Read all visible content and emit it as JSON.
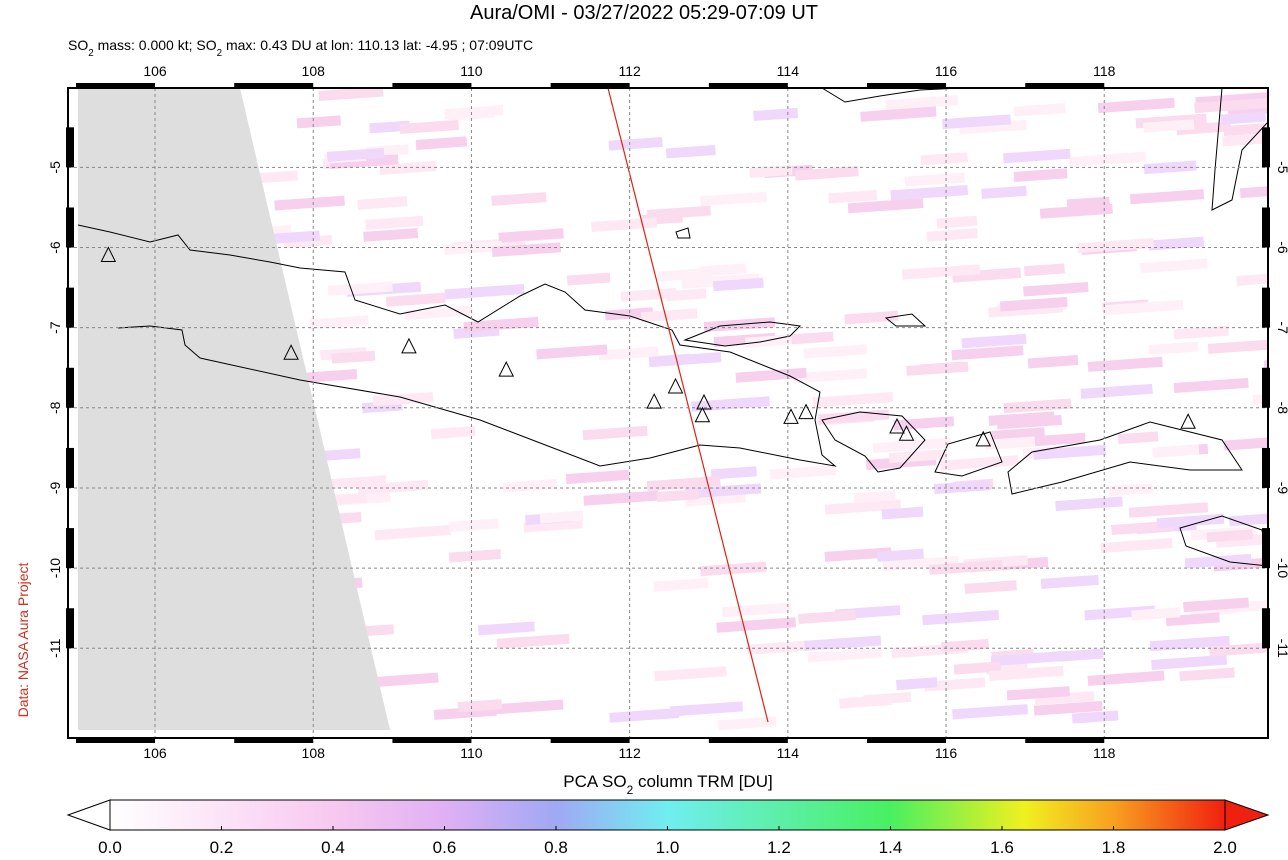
{
  "title": "Aura/OMI - 03/27/2022 05:29-07:09 UT",
  "subtitle": [
    "SO",
    "2",
    " mass: 0.000 kt; SO",
    "2",
    " max: 0.43 DU at lon: 110.13 lat: -4.95 ; 07:09UTC"
  ],
  "side_label": "Data: NASA Aura Project",
  "map": {
    "lonlim": [
      104.9,
      120.07
    ],
    "latlim": [
      -4.01,
      -12.12
    ],
    "lonticks": [
      106,
      108,
      110,
      112,
      114,
      116,
      118
    ],
    "latticks": [
      -5,
      -6,
      -7,
      -8,
      -9,
      -10,
      -11
    ],
    "volcanoes": [
      [
        105.41,
        -6.1
      ],
      [
        107.72,
        -7.32
      ],
      [
        109.21,
        -7.24
      ],
      [
        110.44,
        -7.53
      ],
      [
        112.31,
        -7.93
      ],
      [
        112.58,
        -7.74
      ],
      [
        112.94,
        -7.94
      ],
      [
        112.92,
        -8.1
      ],
      [
        114.04,
        -8.12
      ],
      [
        114.23,
        -8.06
      ],
      [
        115.38,
        -8.24
      ],
      [
        115.5,
        -8.33
      ],
      [
        116.47,
        -8.4
      ],
      [
        119.06,
        -8.18
      ]
    ]
  },
  "colorbar": {
    "label": [
      "PCA SO",
      "2",
      " column TRM [DU]"
    ],
    "lim": [
      0,
      2
    ],
    "ticks": [
      {
        "value": 0,
        "label": "0.0"
      },
      {
        "value": 0.2,
        "label": "0.2"
      },
      {
        "value": 0.4,
        "label": "0.4"
      },
      {
        "value": 0.6,
        "label": "0.6"
      },
      {
        "value": 0.8,
        "label": "0.8"
      },
      {
        "value": 1,
        "label": "1.0"
      },
      {
        "value": 1.2,
        "label": "1.2"
      },
      {
        "value": 1.4,
        "label": "1.4"
      },
      {
        "value": 1.6,
        "label": "1.6"
      },
      {
        "value": 1.8,
        "label": "1.8"
      },
      {
        "value": 2,
        "label": "2.0"
      }
    ]
  }
}
